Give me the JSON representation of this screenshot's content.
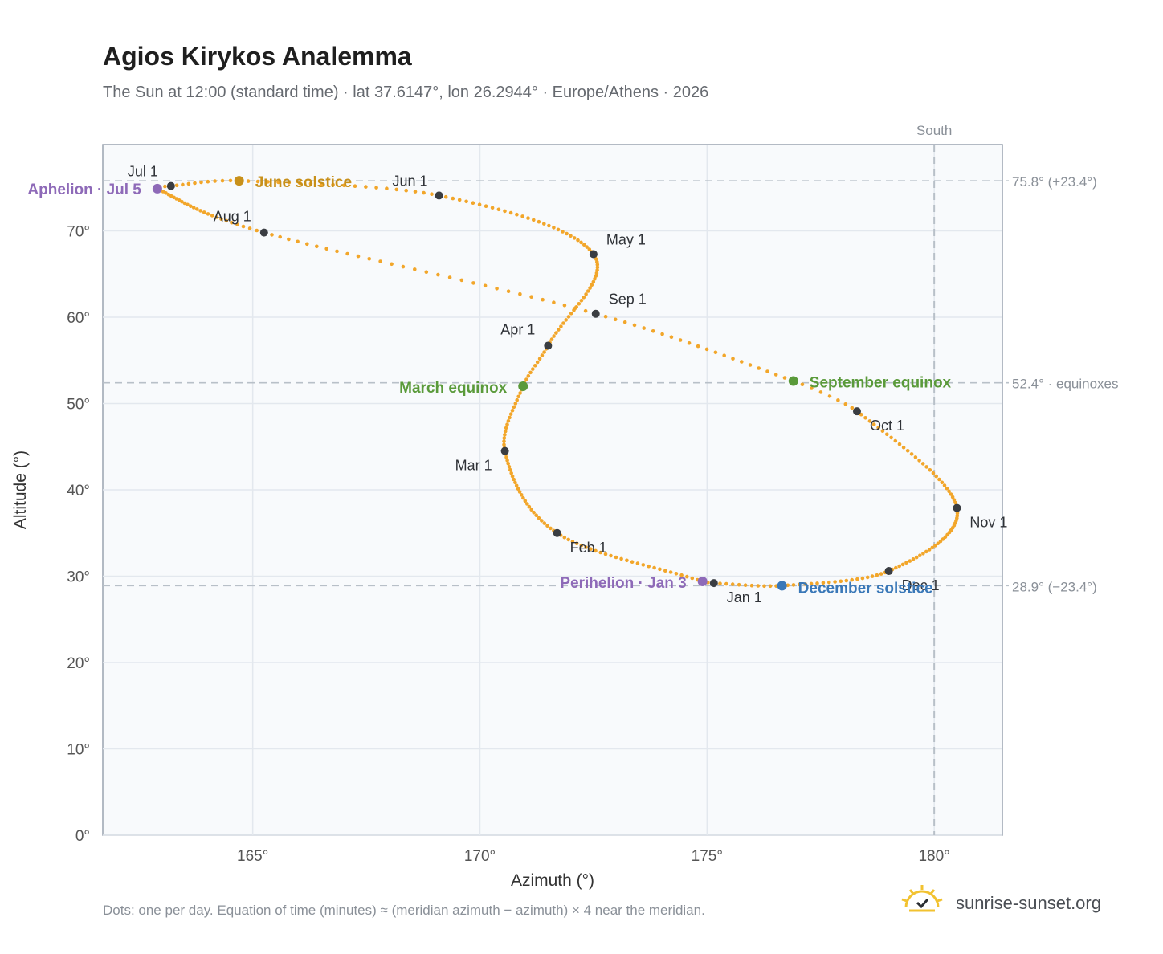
{
  "header": {
    "title": "Agios Kirykos Analemma",
    "subtitle": "The Sun at 12:00 (standard time) · lat 37.6147°, lon 26.2944° · Europe/Athens · 2026"
  },
  "footer": {
    "note": "Dots: one per day. Equation of time (minutes) ≈ (meridian azimuth − azimuth) × 4 near the meridian.",
    "brand": "sunrise-sunset.org",
    "brand_icon": "sunrise-logo-icon"
  },
  "colors": {
    "curve": "#f2a62a",
    "month_dot": "#3a3d42",
    "solstice_june": "#c8901a",
    "equinox": "#5a9a3a",
    "solstice_december": "#3a78b8",
    "apsis": "#8e6ab8",
    "reference": "#b8c0c8",
    "plot_bg": "#f8fafc"
  },
  "chart_data": {
    "type": "scatter",
    "title": "Agios Kirykos Analemma",
    "xlabel": "Azimuth (°)",
    "ylabel": "Altitude (°)",
    "xlim": [
      161.7,
      181.5
    ],
    "ylim": [
      0,
      80
    ],
    "x_ticks": [
      165,
      170,
      175,
      180
    ],
    "x_tick_labels": [
      "165°",
      "170°",
      "175°",
      "180°"
    ],
    "y_ticks": [
      0,
      10,
      20,
      30,
      40,
      50,
      60,
      70
    ],
    "y_tick_labels": [
      "0°",
      "10°",
      "20°",
      "30°",
      "40°",
      "50°",
      "60°",
      "70°"
    ],
    "grid": true,
    "meridian": {
      "azimuth": 180,
      "label": "South"
    },
    "reference_lines": [
      {
        "altitude": 75.8,
        "label": "75.8° (+23.4°)"
      },
      {
        "altitude": 52.4,
        "label": "52.4° · equinoxes"
      },
      {
        "altitude": 28.9,
        "label": "28.9° (−23.4°)"
      }
    ],
    "months": [
      {
        "label": "Jan 1",
        "day": 1,
        "az": 175.15,
        "alt": 29.2
      },
      {
        "label": "Feb 1",
        "day": 32,
        "az": 171.7,
        "alt": 35.0
      },
      {
        "label": "Mar 1",
        "day": 60,
        "az": 170.55,
        "alt": 44.5
      },
      {
        "label": "Apr 1",
        "day": 91,
        "az": 171.5,
        "alt": 56.7
      },
      {
        "label": "May 1",
        "day": 121,
        "az": 172.5,
        "alt": 67.3
      },
      {
        "label": "Jun 1",
        "day": 152,
        "az": 169.1,
        "alt": 74.1
      },
      {
        "label": "Jul 1",
        "day": 182,
        "az": 163.2,
        "alt": 75.2
      },
      {
        "label": "Aug 1",
        "day": 213,
        "az": 165.25,
        "alt": 69.8
      },
      {
        "label": "Sep 1",
        "day": 244,
        "az": 172.55,
        "alt": 60.4
      },
      {
        "label": "Oct 1",
        "day": 274,
        "az": 178.3,
        "alt": 49.1
      },
      {
        "label": "Nov 1",
        "day": 305,
        "az": 180.5,
        "alt": 37.9
      },
      {
        "label": "Dec 1",
        "day": 335,
        "az": 179.0,
        "alt": 30.6
      }
    ],
    "events": [
      {
        "label": "June solstice",
        "day": 172,
        "az": 164.7,
        "alt": 75.8,
        "kind": "solstice_june"
      },
      {
        "label": "March equinox",
        "day": 79,
        "az": 170.95,
        "alt": 52.0,
        "kind": "equinox"
      },
      {
        "label": "September equinox",
        "day": 266,
        "az": 176.9,
        "alt": 52.6,
        "kind": "equinox"
      },
      {
        "label": "December solstice",
        "day": 355,
        "az": 176.65,
        "alt": 28.9,
        "kind": "solstice_december"
      },
      {
        "label": "Aphelion · Jul 5",
        "day": 186,
        "az": 162.9,
        "alt": 74.9,
        "kind": "apsis"
      },
      {
        "label": "Perihelion · Jan 3",
        "day": 3,
        "az": 174.9,
        "alt": 29.4,
        "kind": "apsis"
      }
    ]
  }
}
